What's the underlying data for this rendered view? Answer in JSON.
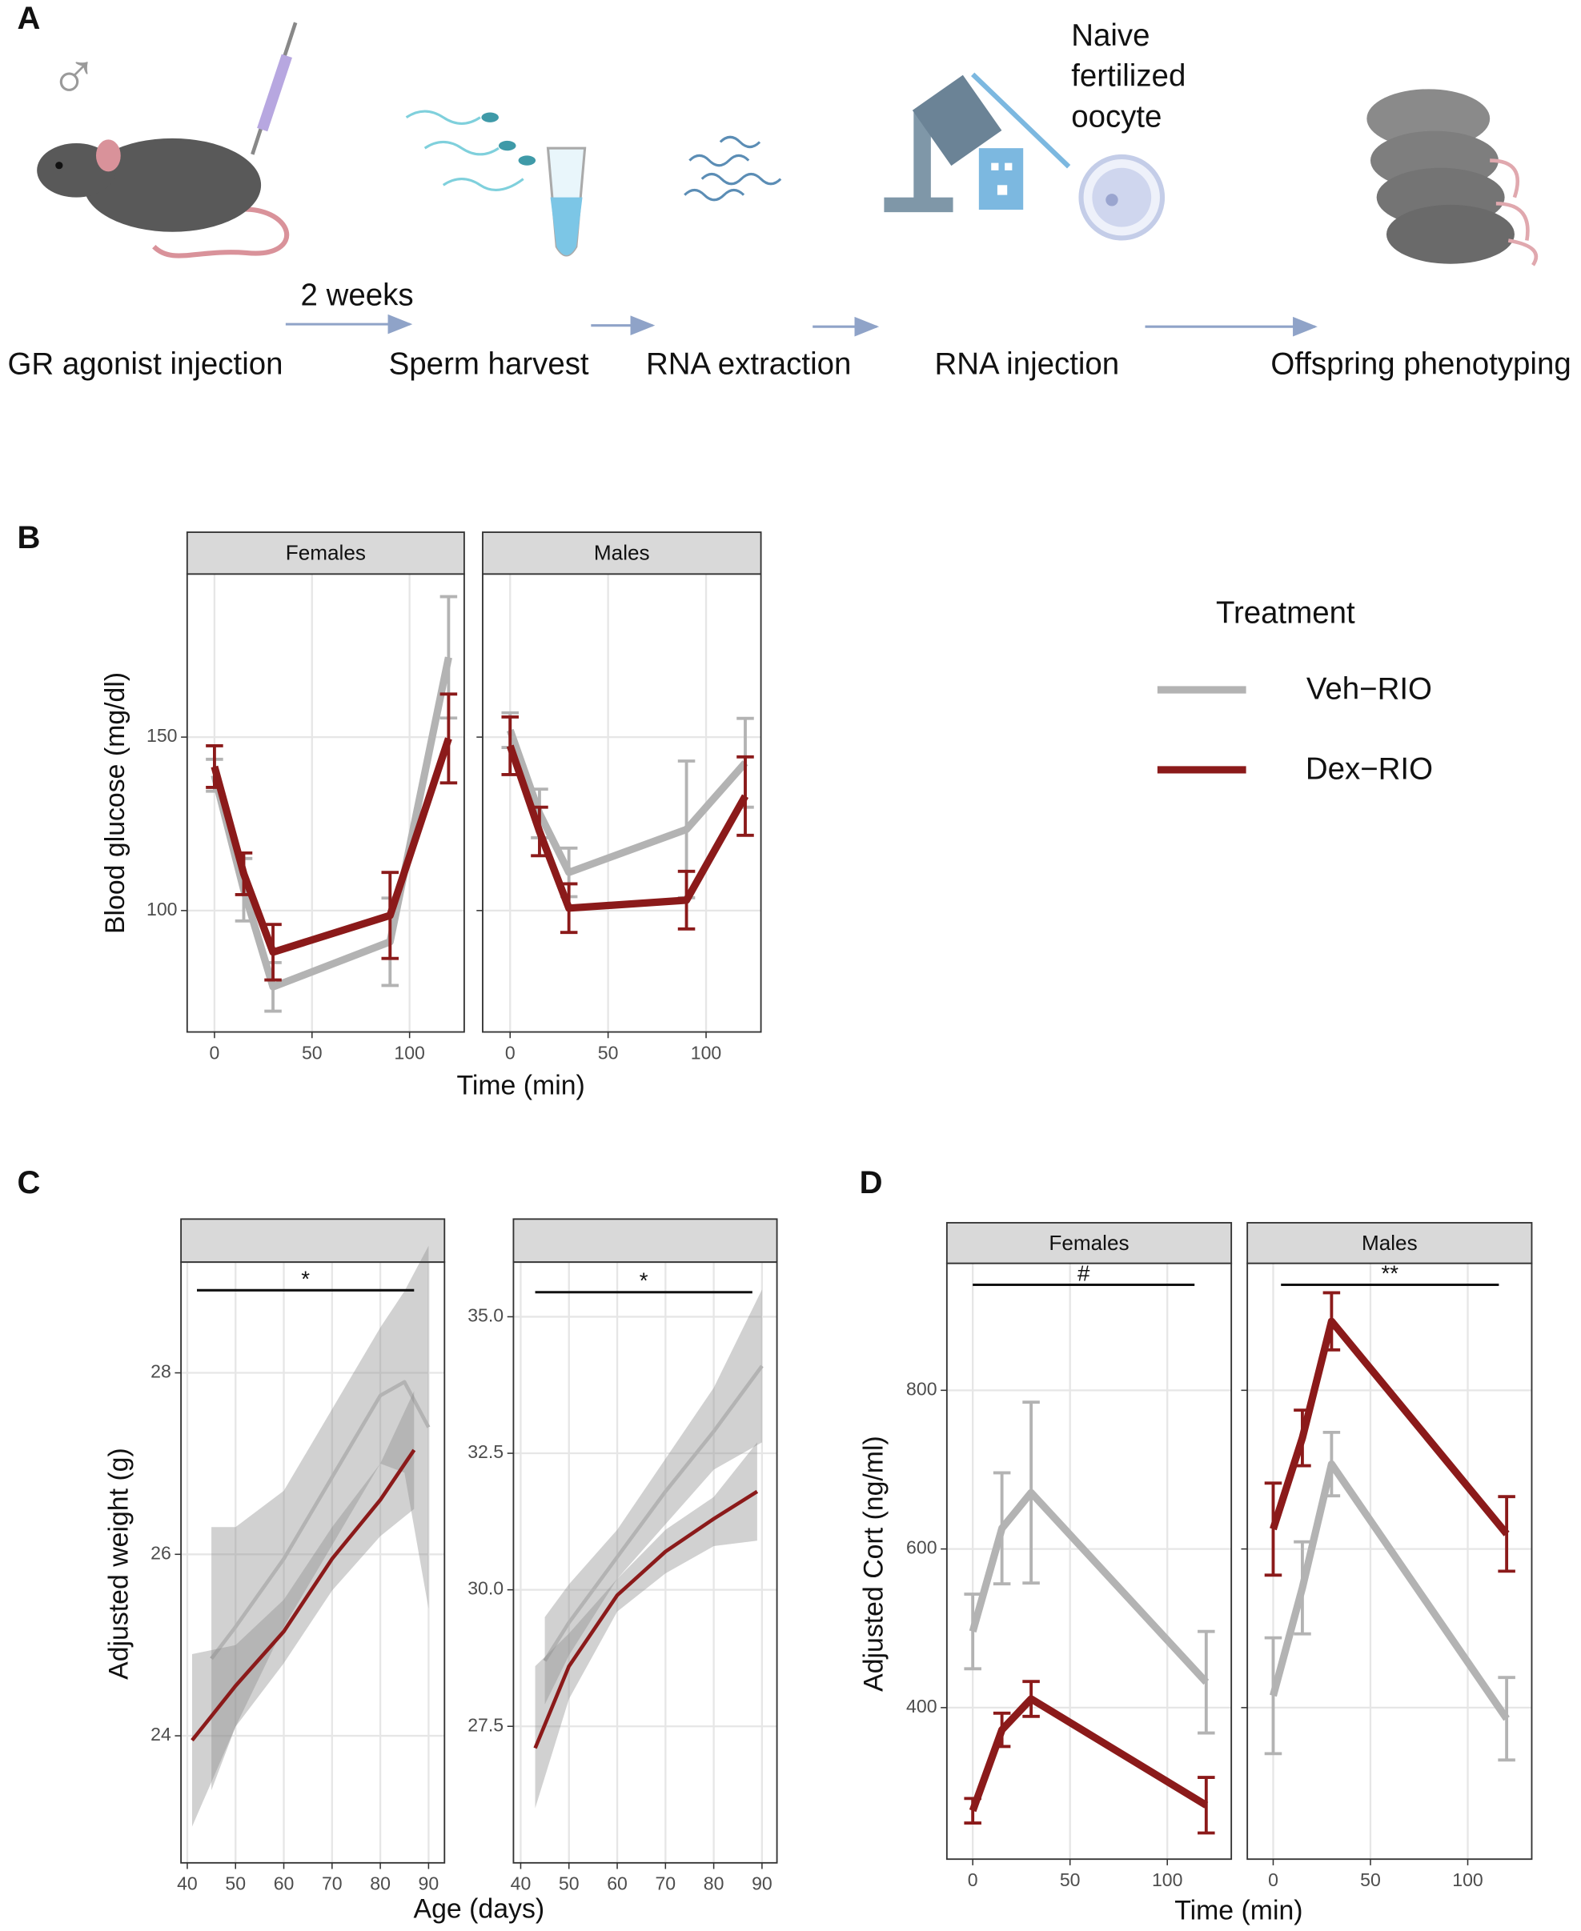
{
  "panel_labels": [
    "A",
    "B",
    "C",
    "D"
  ],
  "schematic": {
    "sex_symbol": "♂",
    "interval": "2 weeks",
    "oocyte_note": [
      "Naive",
      "fertilized",
      "oocyte"
    ],
    "steps": [
      "GR agonist injection",
      "Sperm harvest",
      "RNA extraction",
      "RNA injection",
      "Offspring phenotyping"
    ]
  },
  "chart_data": [
    {
      "type": "line",
      "x_label": "Time (min)",
      "y_label": "Blood glucose (mg/dl)",
      "legend_title": "Treatment",
      "grid": true,
      "x": [
        0,
        15,
        30,
        90,
        120
      ],
      "xlim": [
        -14,
        128
      ],
      "ylim": [
        65,
        197
      ],
      "xticks": [
        0,
        50,
        100
      ],
      "yticks": [
        100,
        150
      ],
      "panels": [
        {
          "title": "Females",
          "series": [
            {
              "name": "Veh−RIO",
              "color": "#b3b3b3",
              "values": [
                139,
                106,
                78,
                91,
                173
              ],
              "errors": [
                4.6,
                9,
                7,
                12.6,
                17.5
              ]
            },
            {
              "name": "Dex−RIO",
              "color": "#8b1a1a",
              "values": [
                141.5,
                110.6,
                88,
                98.6,
                149.6
              ],
              "errors": [
                6,
                6,
                8,
                12.4,
                12.8
              ]
            }
          ]
        },
        {
          "title": "Males",
          "series": [
            {
              "name": "Veh−RIO",
              "color": "#b3b3b3",
              "values": [
                152,
                128,
                111,
                123.4,
                142.6
              ],
              "errors": [
                5,
                7,
                7,
                19.7,
                12.8
              ]
            },
            {
              "name": "Dex−RIO",
              "color": "#8b1a1a",
              "values": [
                147.5,
                122.8,
                100.7,
                103,
                133
              ],
              "errors": [
                8.3,
                7,
                7,
                8.3,
                11.3
              ]
            }
          ]
        }
      ]
    },
    {
      "type": "smooth",
      "x_label": "Age (days)",
      "y_label": "Adjusted weight (g)",
      "grid": true,
      "panels": [
        {
          "xlim": [
            38.7,
            93.3
          ],
          "ylim": [
            22.6,
            29.22
          ],
          "xticks": [
            40,
            50,
            60,
            70,
            80,
            90
          ],
          "yticks": [
            24,
            26,
            28
          ],
          "significance": {
            "x": [
              42,
              87
            ],
            "y": 28.91,
            "label": "*"
          },
          "series": [
            {
              "name": "Veh−RIO",
              "color": "#b3b3b3",
              "x": [
                45,
                50,
                60,
                70,
                80,
                85,
                90
              ],
              "values": [
                24.85,
                25.2,
                25.95,
                26.85,
                27.75,
                27.9,
                27.4
              ],
              "lower": [
                23.4,
                24.1,
                25.2,
                26.1,
                27.0,
                26.9,
                25.4
              ],
              "upper": [
                26.3,
                26.3,
                26.7,
                27.6,
                28.5,
                28.9,
                29.4
              ]
            },
            {
              "name": "Dex−RIO",
              "color": "#8b1a1a",
              "x": [
                41,
                50,
                60,
                70,
                80,
                87
              ],
              "values": [
                23.95,
                24.55,
                25.15,
                25.95,
                26.6,
                27.15
              ],
              "lower": [
                23.0,
                24.1,
                24.8,
                25.6,
                26.2,
                26.5
              ],
              "upper": [
                24.9,
                25.0,
                25.5,
                26.3,
                27.0,
                27.8
              ]
            }
          ]
        },
        {
          "xlim": [
            38.5,
            93.1
          ],
          "ylim": [
            25,
            36
          ],
          "xticks": [
            40,
            50,
            60,
            70,
            80,
            90
          ],
          "yticks": [
            27.5,
            {
              "value": 30,
              "label": "30.0"
            },
            32.5,
            {
              "value": 35,
              "label": "35.0"
            }
          ],
          "significance": {
            "x": [
              43,
              88
            ],
            "y": 35.45,
            "label": "*"
          },
          "series": [
            {
              "name": "Veh−RIO",
              "color": "#b3b3b3",
              "x": [
                45,
                50,
                60,
                70,
                80,
                90
              ],
              "values": [
                28.7,
                29.4,
                30.6,
                31.8,
                32.9,
                34.1
              ],
              "lower": [
                27.9,
                28.8,
                30.2,
                31.2,
                32.2,
                32.7
              ],
              "upper": [
                29.5,
                30.1,
                31.1,
                32.4,
                33.7,
                35.5
              ]
            },
            {
              "name": "Dex−RIO",
              "color": "#8b1a1a",
              "x": [
                43,
                50,
                60,
                70,
                80,
                89
              ],
              "values": [
                27.1,
                28.6,
                29.9,
                30.7,
                31.3,
                31.8
              ],
              "lower": [
                26.0,
                28.0,
                29.6,
                30.3,
                30.8,
                30.9
              ],
              "upper": [
                28.6,
                29.2,
                30.2,
                31.1,
                31.7,
                32.7
              ]
            }
          ]
        }
      ]
    },
    {
      "type": "line",
      "x_label": "Time (min)",
      "y_label": "Adjusted Cort (ng/ml)",
      "grid": true,
      "x": [
        0,
        15,
        30,
        120
      ],
      "xlim": [
        -13.3,
        132.9
      ],
      "ylim": [
        209,
        960
      ],
      "xticks": [
        0,
        50,
        100
      ],
      "yticks": [
        400,
        600,
        800
      ],
      "panels": [
        {
          "title": "Females",
          "significance": {
            "x": [
              0,
              114
            ],
            "y": 933,
            "label": "#"
          },
          "series": [
            {
              "name": "Veh−RIO",
              "color": "#b3b3b3",
              "values": [
                496,
                626,
                671,
                432
              ],
              "errors": [
                47,
                70,
                114,
                64
              ]
            },
            {
              "name": "Dex−RIO",
              "color": "#8b1a1a",
              "values": [
                270,
                372,
                411,
                277
              ],
              "errors": [
                15.5,
                21,
                22,
                35
              ]
            }
          ]
        },
        {
          "title": "Males",
          "significance": {
            "x": [
              4,
              116
            ],
            "y": 933,
            "label": "**"
          },
          "series": [
            {
              "name": "Veh−RIO",
              "color": "#b3b3b3",
              "values": [
                415,
                551,
                707,
                386
              ],
              "errors": [
                73,
                58,
                40,
                52
              ]
            },
            {
              "name": "Dex−RIO",
              "color": "#8b1a1a",
              "values": [
                625,
                740,
                887,
                619
              ],
              "errors": [
                58,
                35,
                36,
                47
              ]
            }
          ]
        }
      ]
    }
  ]
}
